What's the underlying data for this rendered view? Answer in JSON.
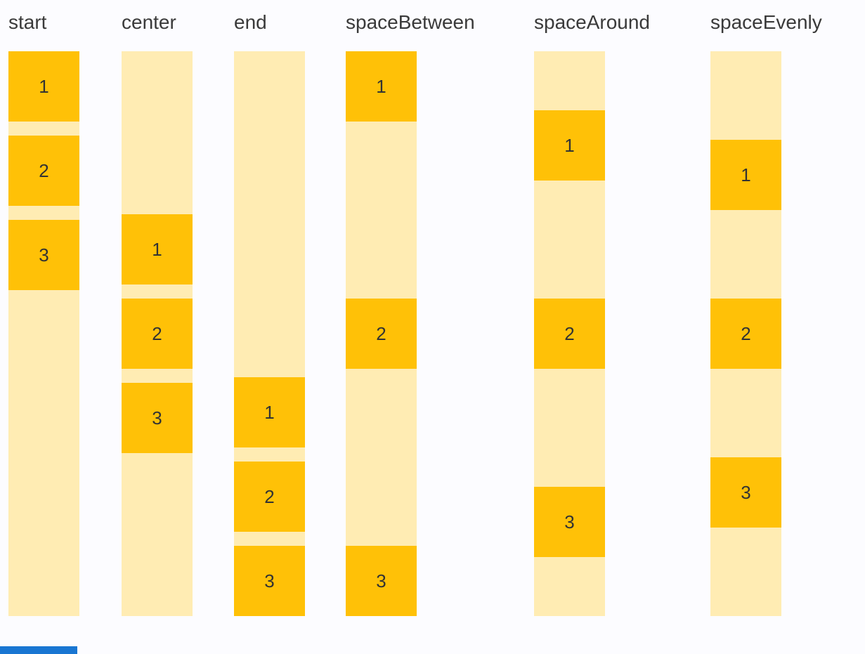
{
  "page": {
    "background": "#FCFCFF"
  },
  "colors": {
    "box": "#FFC107",
    "track": "#FFECB3",
    "label_text": "#3A3A3A",
    "number_text": "#333333",
    "accent_blue": "#1976D2"
  },
  "columns": [
    {
      "label": "start",
      "justify": "start",
      "items": [
        "1",
        "2",
        "3"
      ]
    },
    {
      "label": "center",
      "justify": "center",
      "items": [
        "1",
        "2",
        "3"
      ]
    },
    {
      "label": "end",
      "justify": "end",
      "items": [
        "1",
        "2",
        "3"
      ]
    },
    {
      "label": "spaceBetween",
      "justify": "spaceBetween",
      "items": [
        "1",
        "2",
        "3"
      ]
    },
    {
      "label": "spaceAround",
      "justify": "spaceAround",
      "items": [
        "1",
        "2",
        "3"
      ]
    },
    {
      "label": "spaceEvenly",
      "justify": "spaceEvenly",
      "items": [
        "1",
        "2",
        "3"
      ]
    }
  ],
  "bottom_partial_element": {
    "visible": true
  }
}
